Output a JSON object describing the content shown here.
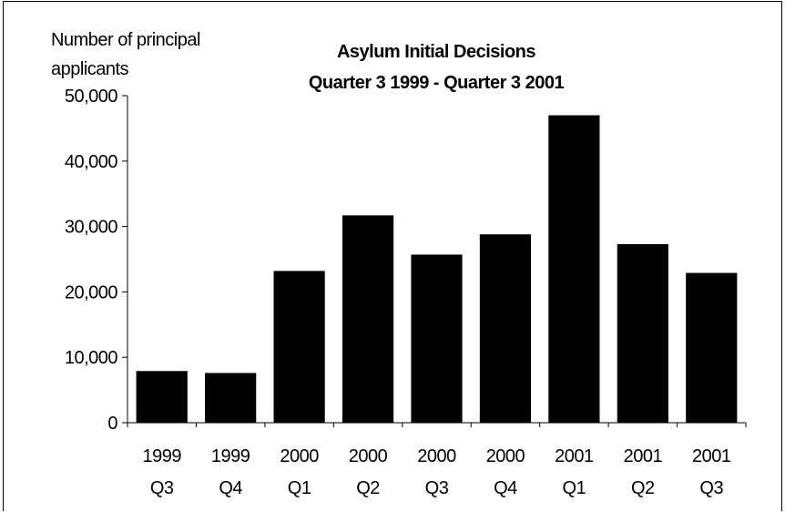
{
  "chart_data": {
    "type": "bar",
    "title_lines": [
      "Asylum Initial Decisions",
      "Quarter 3 1999 - Quarter 3 2001"
    ],
    "ylabel_lines": [
      "Number of principal",
      "applicants"
    ],
    "xlabel": "",
    "categories": [
      {
        "year": "1999",
        "quarter": "Q3"
      },
      {
        "year": "1999",
        "quarter": "Q4"
      },
      {
        "year": "2000",
        "quarter": "Q1"
      },
      {
        "year": "2000",
        "quarter": "Q2"
      },
      {
        "year": "2000",
        "quarter": "Q3"
      },
      {
        "year": "2000",
        "quarter": "Q4"
      },
      {
        "year": "2001",
        "quarter": "Q1"
      },
      {
        "year": "2001",
        "quarter": "Q2"
      },
      {
        "year": "2001",
        "quarter": "Q3"
      }
    ],
    "values": [
      7900,
      7600,
      23200,
      31700,
      25700,
      28800,
      47000,
      27300,
      22900
    ],
    "ylim": [
      0,
      50000
    ],
    "yticks": [
      0,
      10000,
      20000,
      30000,
      40000,
      50000
    ],
    "ytick_labels": [
      "0",
      "10,000",
      "20,000",
      "30,000",
      "40,000",
      "50,000"
    ],
    "grid": false,
    "legend": "none",
    "bar_color": "#000000"
  }
}
